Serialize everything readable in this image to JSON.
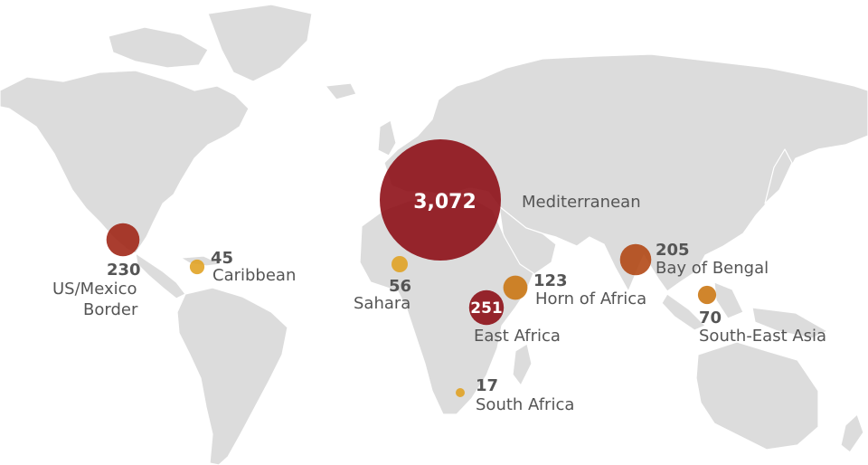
{
  "colors": {
    "land": "#dcdcdc",
    "border": "#ffffff",
    "text": "#555555",
    "high": "#8b0a12",
    "mid_high": "#9e2212",
    "mid": "#b04410",
    "low": "#c9740f",
    "lowest": "#e0a020"
  },
  "map": {
    "regions": [
      {
        "id": "mediterranean",
        "value": 3072,
        "value_label": "3,072",
        "name": "Mediterranean",
        "color_key": "high"
      },
      {
        "id": "east-africa",
        "value": 251,
        "value_label": "251",
        "name": "East Africa",
        "color_key": "high"
      },
      {
        "id": "us-mexico-border",
        "value": 230,
        "value_label": "230",
        "name_line1": "US/Mexico",
        "name_line2": "Border",
        "color_key": "mid_high"
      },
      {
        "id": "bay-of-bengal",
        "value": 205,
        "value_label": "205",
        "name": "Bay of Bengal",
        "color_key": "mid"
      },
      {
        "id": "horn-of-africa",
        "value": 123,
        "value_label": "123",
        "name": "Horn of Africa",
        "color_key": "low"
      },
      {
        "id": "south-east-asia",
        "value": 70,
        "value_label": "70",
        "name": "South-East Asia",
        "color_key": "low"
      },
      {
        "id": "sahara",
        "value": 56,
        "value_label": "56",
        "name": "Sahara",
        "color_key": "lowest"
      },
      {
        "id": "caribbean",
        "value": 45,
        "value_label": "45",
        "name": "Caribbean",
        "color_key": "lowest"
      },
      {
        "id": "south-africa",
        "value": 17,
        "value_label": "17",
        "name": "South Africa",
        "color_key": "lowest"
      }
    ]
  }
}
